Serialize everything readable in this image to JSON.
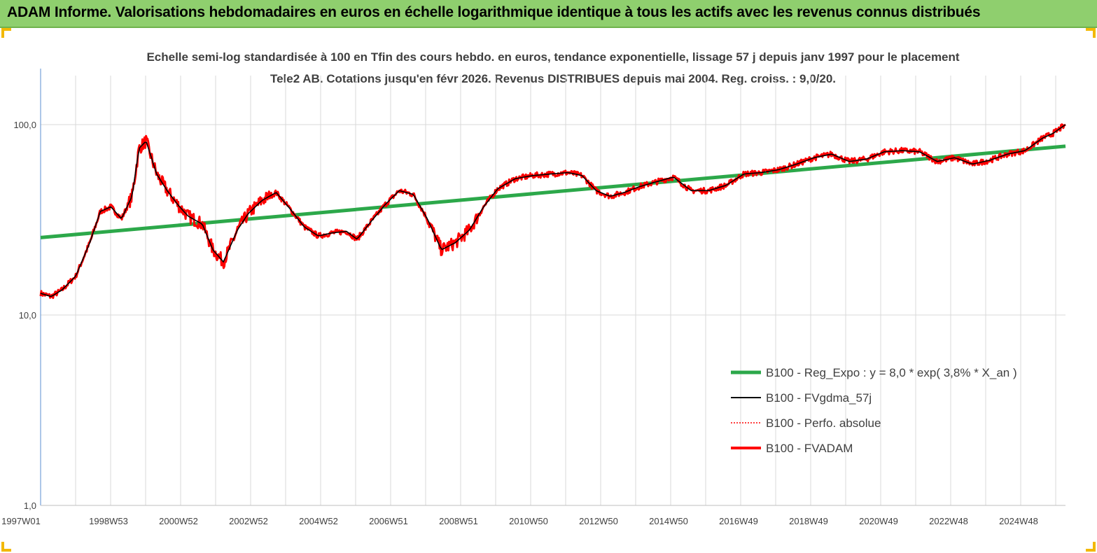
{
  "banner": {
    "title": "ADAM Informe. Valorisations hebdomadaires en euros en échelle logarithmique identique à tous les actifs avec les revenus connus distribués"
  },
  "colors": {
    "banner_bg": "#8fcf6e",
    "trend": "#2ca84a",
    "smooth": "#000000",
    "fvadam": "#ff0000",
    "perfo": "#ff0000"
  },
  "chart_data": {
    "type": "line",
    "title": "Echelle semi-log standardisée à 100 en Tfin des cours hebdo. en euros, tendance exponentielle, lissage 57 j depuis janv 1997 pour le placement Tele2 AB. Cotations jusqu'en févr 2026. Revenus DISTRIBUES depuis mai 2004. Reg. croiss. : 9,0/20.",
    "yscale": "log",
    "ylim": [
      1,
      200
    ],
    "y_ticks": [
      "1,0",
      "10,0",
      "100,0"
    ],
    "x_range": [
      1997.0,
      2026.15
    ],
    "x_ticks": [
      "1997W01",
      "1998W53",
      "2000W52",
      "2002W52",
      "2004W52",
      "2006W51",
      "2008W51",
      "2010W50",
      "2012W50",
      "2014W50",
      "2016W49",
      "2018W49",
      "2020W49",
      "2022W48",
      "2024W48"
    ],
    "legend_position": "right-inside",
    "series": [
      {
        "name": "B100 - Reg_Expo : y = 8,0 * exp( 3,8% *  X_an )",
        "style": "trend",
        "x": [
          1997.0,
          2026.15
        ],
        "y": [
          25.5,
          77.0
        ]
      },
      {
        "name": "B100 - FVgdma_57j",
        "style": "smooth"
      },
      {
        "name": "B100 - Perfo. absolue",
        "style": "perfo"
      },
      {
        "name": "B100 - FVADAM",
        "style": "fvadam",
        "x": [
          1997.0,
          1997.3,
          1997.6,
          1998.0,
          1998.4,
          1998.7,
          1999.0,
          1999.3,
          1999.6,
          1999.8,
          2000.0,
          2000.3,
          2000.6,
          2000.9,
          2001.2,
          2001.6,
          2001.9,
          2002.2,
          2002.6,
          2002.9,
          2003.3,
          2003.7,
          2004.1,
          2004.5,
          2004.9,
          2005.3,
          2005.7,
          2006.0,
          2006.4,
          2006.8,
          2007.2,
          2007.6,
          2008.0,
          2008.4,
          2008.8,
          2009.2,
          2009.6,
          2010.0,
          2010.5,
          2011.0,
          2011.5,
          2012.0,
          2012.4,
          2012.8,
          2013.2,
          2013.6,
          2014.0,
          2014.5,
          2015.0,
          2015.5,
          2016.0,
          2016.5,
          2017.0,
          2017.5,
          2018.0,
          2018.5,
          2019.0,
          2019.5,
          2020.0,
          2020.5,
          2021.0,
          2021.5,
          2022.0,
          2022.5,
          2023.0,
          2023.5,
          2024.0,
          2024.5,
          2025.0,
          2025.5,
          2025.8,
          2026.15
        ],
        "y": [
          13.0,
          12.5,
          13.5,
          16.0,
          24.0,
          35.0,
          37.0,
          32.0,
          42.0,
          75.0,
          82.0,
          55.0,
          45.0,
          38.0,
          33.0,
          30.0,
          22.0,
          19.0,
          28.0,
          34.0,
          40.0,
          44.0,
          36.0,
          29.0,
          26.0,
          27.0,
          27.5,
          25.0,
          31.0,
          38.0,
          45.0,
          43.0,
          32.0,
          22.0,
          24.0,
          28.0,
          37.0,
          46.0,
          52.0,
          54.0,
          55.0,
          56.0,
          54.0,
          45.0,
          42.0,
          44.0,
          47.0,
          50.0,
          53.0,
          45.0,
          45.0,
          48.0,
          55.0,
          56.0,
          58.0,
          62.0,
          67.0,
          70.0,
          64.0,
          66.0,
          72.0,
          73.0,
          72.0,
          64.0,
          67.0,
          62.0,
          65.0,
          70.0,
          73.0,
          85.0,
          90.0,
          100.0
        ]
      }
    ]
  }
}
